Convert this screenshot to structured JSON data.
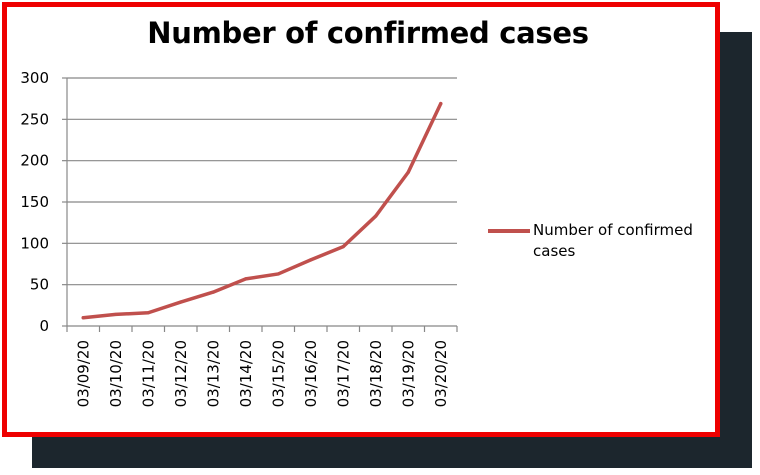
{
  "chart_data": {
    "type": "line",
    "title": "Number of confirmed cases",
    "xlabel": "",
    "ylabel": "",
    "categories": [
      "03/09/20",
      "03/10/20",
      "03/11/20",
      "03/12/20",
      "03/13/20",
      "03/14/20",
      "03/15/20",
      "03/16/20",
      "03/17/20",
      "03/18/20",
      "03/19/20",
      "03/20/20"
    ],
    "series": [
      {
        "name": "Number of confirmed cases",
        "values": [
          10,
          14,
          16,
          29,
          41,
          57,
          63,
          80,
          96,
          133,
          186,
          269
        ]
      }
    ],
    "ylim": [
      0,
      300
    ],
    "yticks": [
      0,
      50,
      100,
      150,
      200,
      250,
      300
    ],
    "grid": true,
    "legend": "right",
    "colors": {
      "series": "#c0504d",
      "grid": "#888888",
      "frame": "#ee0000",
      "shadow": "#1c262d"
    }
  }
}
